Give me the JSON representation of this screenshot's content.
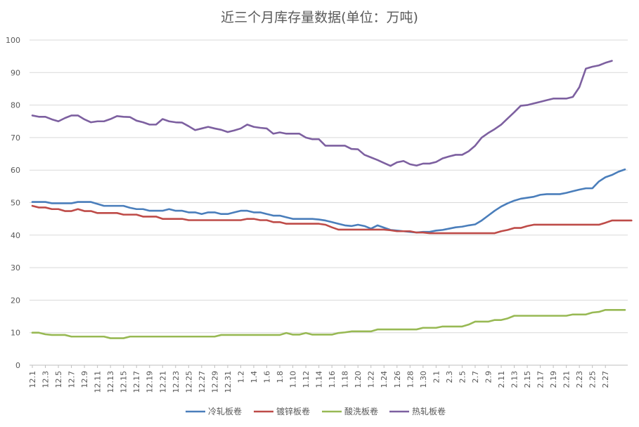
{
  "chart_data": {
    "type": "line",
    "title": "近三个月库存量数据(单位：万吨)",
    "xlabel": "",
    "ylabel": "",
    "ylim": [
      0,
      100
    ],
    "yticks": [
      0,
      10,
      20,
      30,
      40,
      50,
      60,
      70,
      80,
      90,
      100
    ],
    "grid": true,
    "legend_position": "bottom",
    "x_tick_labels": [
      "12.1",
      "12.3",
      "12.5",
      "12.7",
      "12.9",
      "12.11",
      "12.13",
      "12.15",
      "12.17",
      "12.19",
      "12.21",
      "12.23",
      "12.25",
      "12.27",
      "12.29",
      "12.31",
      "1.2",
      "1.4",
      "1.6",
      "1.8",
      "1.10",
      "1.12",
      "1.14",
      "1.16",
      "1.18",
      "1.20",
      "1.22",
      "1.24",
      "1.26",
      "1.28",
      "1.30",
      "2.1",
      "2.3",
      "2.5",
      "2.7",
      "2.9",
      "2.11",
      "2.13",
      "2.15",
      "2.17",
      "2.19",
      "2.21",
      "2.23",
      "2.25",
      "2.27"
    ],
    "series": [
      {
        "name": "冷轧板卷",
        "color": "#4a7ebb",
        "values": [
          50.2,
          50.2,
          50.2,
          49.8,
          49.8,
          49.8,
          49.8,
          50.2,
          50.2,
          50.2,
          49.6,
          49,
          49,
          49,
          49,
          48.4,
          48,
          48,
          47.5,
          47.5,
          47.5,
          48,
          47.5,
          47.5,
          47,
          47,
          46.5,
          47,
          47,
          46.5,
          46.5,
          47,
          47.5,
          47.5,
          47,
          47,
          46.5,
          46,
          46,
          45.5,
          45,
          45,
          45,
          45,
          44.8,
          44.5,
          44,
          43.5,
          43,
          42.8,
          43.2,
          42.8,
          42,
          43,
          42.3,
          41.6,
          41.4,
          41.2,
          41,
          40.8,
          41,
          41,
          41.4,
          41.6,
          42,
          42.4,
          42.6,
          43,
          43.3,
          44.5,
          46,
          47.5,
          48.8,
          49.8,
          50.6,
          51.2,
          51.5,
          51.8,
          52.4,
          52.6,
          52.6,
          52.6,
          53,
          53.5,
          54,
          54.4,
          54.4,
          56.5,
          57.8,
          58.5,
          59.5,
          60.2
        ]
      },
      {
        "name": "镀锌板卷",
        "color": "#be4b48",
        "values": [
          49,
          48.5,
          48.5,
          48,
          48,
          47.4,
          47.4,
          48,
          47.4,
          47.4,
          46.8,
          46.8,
          46.8,
          46.8,
          46.3,
          46.3,
          46.3,
          45.7,
          45.7,
          45.7,
          45,
          45,
          45,
          45,
          44.6,
          44.6,
          44.6,
          44.6,
          44.6,
          44.6,
          44.6,
          44.6,
          44.6,
          45,
          45,
          44.6,
          44.6,
          44,
          44,
          43.5,
          43.5,
          43.5,
          43.5,
          43.5,
          43.5,
          43.2,
          42.4,
          41.7,
          41.7,
          41.7,
          41.7,
          41.7,
          41.7,
          41.7,
          41.7,
          41.5,
          41.2,
          41.2,
          41.2,
          40.8,
          40.8,
          40.6,
          40.6,
          40.6,
          40.6,
          40.6,
          40.6,
          40.6,
          40.6,
          40.6,
          40.6,
          40.6,
          41.2,
          41.6,
          42.2,
          42.2,
          42.8,
          43.2,
          43.2,
          43.2,
          43.2,
          43.2,
          43.2,
          43.2,
          43.2,
          43.2,
          43.2,
          43.2,
          43.8,
          44.5,
          44.5,
          44.5,
          44.5
        ]
      },
      {
        "name": "酸洗板卷",
        "color": "#98b954",
        "values": [
          10,
          10,
          9.5,
          9.3,
          9.3,
          9.3,
          8.8,
          8.8,
          8.8,
          8.8,
          8.8,
          8.8,
          8.3,
          8.3,
          8.3,
          8.8,
          8.8,
          8.8,
          8.8,
          8.8,
          8.8,
          8.8,
          8.8,
          8.8,
          8.8,
          8.8,
          8.8,
          8.8,
          8.8,
          9.3,
          9.3,
          9.3,
          9.3,
          9.3,
          9.3,
          9.3,
          9.3,
          9.3,
          9.3,
          9.9,
          9.4,
          9.4,
          9.9,
          9.4,
          9.4,
          9.4,
          9.4,
          9.9,
          10.1,
          10.4,
          10.4,
          10.4,
          10.4,
          11,
          11,
          11,
          11,
          11,
          11,
          11,
          11.5,
          11.5,
          11.5,
          11.9,
          11.9,
          11.9,
          11.9,
          12.5,
          13.4,
          13.4,
          13.4,
          13.9,
          13.9,
          14.4,
          15.2,
          15.2,
          15.2,
          15.2,
          15.2,
          15.2,
          15.2,
          15.2,
          15.2,
          15.6,
          15.6,
          15.6,
          16.2,
          16.4,
          17,
          17,
          17,
          17
        ]
      },
      {
        "name": "热轧板卷",
        "color": "#7d60a0",
        "values": [
          76.8,
          76.4,
          76.4,
          75.6,
          75,
          76,
          76.8,
          76.8,
          75.6,
          74.7,
          75,
          75,
          75.7,
          76.6,
          76.4,
          76.3,
          75.2,
          74.7,
          74,
          74,
          75.7,
          75,
          74.7,
          74.6,
          73.5,
          72.3,
          72.8,
          73.3,
          72.8,
          72.4,
          71.7,
          72.2,
          72.8,
          74,
          73.3,
          73,
          72.8,
          71.2,
          71.6,
          71.2,
          71.2,
          71.2,
          70,
          69.5,
          69.5,
          67.5,
          67.5,
          67.5,
          67.5,
          66.5,
          66.4,
          64.7,
          63.9,
          63.1,
          62.2,
          61.3,
          62.4,
          62.8,
          61.8,
          61.4,
          62,
          62,
          62.5,
          63.6,
          64.2,
          64.7,
          64.7,
          65.8,
          67.5,
          70,
          71.4,
          72.6,
          74,
          75.9,
          77.8,
          79.8,
          80,
          80.5,
          81,
          81.5,
          82,
          82,
          82,
          82.5,
          85.5,
          91.2,
          91.8,
          92.2,
          93,
          93.6
        ]
      }
    ]
  }
}
